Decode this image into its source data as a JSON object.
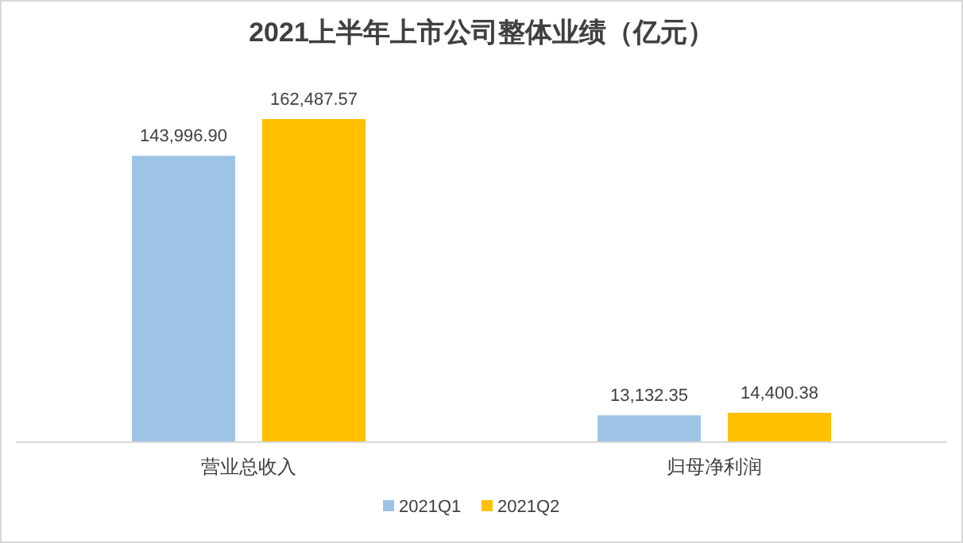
{
  "chart_data": {
    "type": "bar",
    "title": "2021上半年上市公司整体业绩（亿元）",
    "categories": [
      "营业总收入",
      "归母净利润"
    ],
    "series": [
      {
        "name": "2021Q1",
        "color": "#9dc3e6",
        "values": [
          143996.9,
          13132.35
        ],
        "value_labels": [
          "143,996.90",
          "13,132.35"
        ]
      },
      {
        "name": "2021Q2",
        "color": "#ffc000",
        "values": [
          162487.57,
          14400.38
        ],
        "value_labels": [
          "162,487.57",
          "14,400.38"
        ]
      }
    ],
    "legend": "bottom"
  }
}
